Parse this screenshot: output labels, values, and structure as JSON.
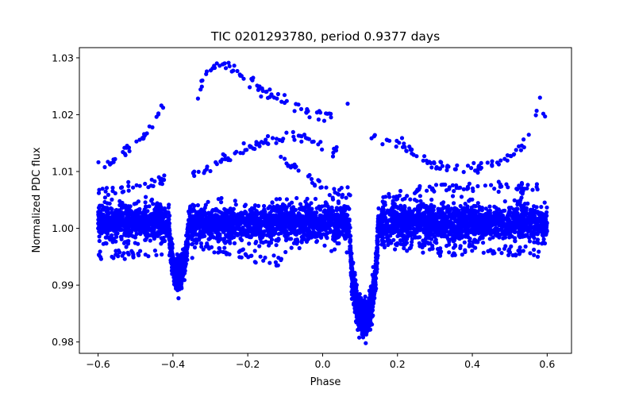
{
  "chart_data": {
    "type": "scatter",
    "title": "TIC 0201293780, period 0.9377 days",
    "xlabel": "Phase",
    "ylabel": "Normalized PDC flux",
    "xlim": [
      -0.65,
      0.665
    ],
    "ylim": [
      0.978,
      1.0318
    ],
    "xticks": [
      -0.6,
      -0.4,
      -0.2,
      0.0,
      0.2,
      0.4,
      0.6
    ],
    "xtick_labels": [
      "−0.6",
      "−0.4",
      "−0.2",
      "0.0",
      "0.2",
      "0.4",
      "0.6"
    ],
    "yticks": [
      0.98,
      0.99,
      1.0,
      1.01,
      1.02,
      1.03
    ],
    "ytick_labels": [
      "0.98",
      "0.99",
      "1.00",
      "1.01",
      "1.02",
      "1.03"
    ],
    "grid": false,
    "marker_color": "#0000ff",
    "x_range": [
      -0.6,
      0.6
    ],
    "baseline_flux": 1.001,
    "baseline_scatter": 0.0016,
    "primary_eclipse": {
      "center": 0.11,
      "depth": 0.017,
      "halfwidth": 0.038
    },
    "secondary_eclipse": {
      "center": -0.385,
      "depth": 0.009,
      "halfwidth": 0.026
    },
    "outlier_tracks": [
      {
        "x": [
          -0.6,
          -0.55,
          -0.5,
          -0.45,
          -0.42
        ],
        "y": [
          1.0105,
          1.012,
          1.0145,
          1.019,
          1.0225
        ]
      },
      {
        "x": [
          -0.35,
          -0.31,
          -0.29,
          -0.25,
          -0.2,
          -0.15,
          -0.1,
          -0.05,
          0.0,
          0.05,
          0.07
        ],
        "y": [
          1.0205,
          1.0275,
          1.029,
          1.0285,
          1.026,
          1.024,
          1.0225,
          1.021,
          1.0195,
          1.022,
          1.0215
        ]
      },
      {
        "x": [
          -0.35,
          -0.3,
          -0.25,
          -0.2,
          -0.15,
          -0.1,
          -0.05,
          0.0,
          0.05
        ],
        "y": [
          1.0095,
          1.0105,
          1.0125,
          1.014,
          1.0155,
          1.016,
          1.0165,
          1.0145,
          1.0135
        ]
      },
      {
        "x": [
          -0.6,
          -0.55,
          -0.5,
          -0.45,
          -0.42
        ],
        "y": [
          1.0065,
          1.007,
          1.0075,
          1.008,
          1.0085
        ]
      },
      {
        "x": [
          -0.6,
          -0.5,
          -0.43
        ],
        "y": [
          0.9955,
          0.9955,
          0.9955
        ]
      },
      {
        "x": [
          -0.35,
          -0.3,
          -0.25,
          -0.2,
          -0.15,
          -0.11
        ],
        "y": [
          0.9975,
          0.9965,
          0.9955,
          0.995,
          0.9945,
          0.994
        ]
      },
      {
        "x": [
          -0.12,
          -0.08,
          -0.03,
          0.0,
          0.04,
          0.08
        ],
        "y": [
          1.013,
          1.011,
          1.0085,
          1.007,
          1.0065,
          1.006
        ]
      },
      {
        "x": [
          0.13,
          0.2,
          0.3,
          0.4,
          0.5,
          0.55,
          0.58,
          0.6
        ],
        "y": [
          1.0165,
          1.015,
          1.011,
          1.0105,
          1.0125,
          1.0155,
          1.022,
          1.018
        ]
      },
      {
        "x": [
          0.15,
          0.3,
          0.45,
          0.58
        ],
        "y": [
          1.005,
          1.007,
          1.0075,
          1.007
        ]
      },
      {
        "x": [
          0.15,
          0.3,
          0.45,
          0.58
        ],
        "y": [
          0.997,
          0.9965,
          0.996,
          0.9955
        ]
      }
    ]
  }
}
